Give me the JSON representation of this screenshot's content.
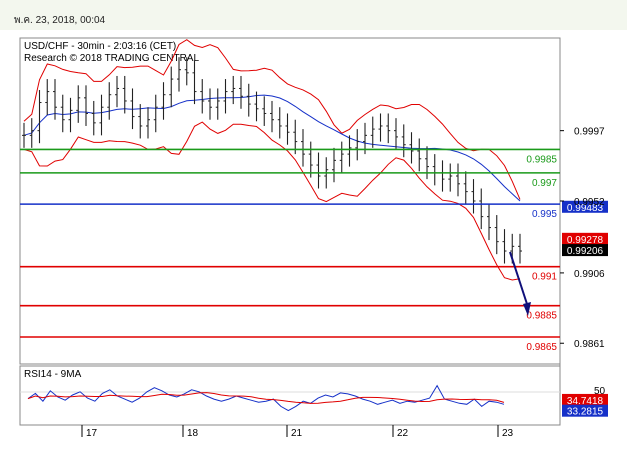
{
  "header": {
    "date_text": "พ.ค. 23, 2018, 00:04"
  },
  "chart_data": {
    "type": "line",
    "title": "USD/CHF - 30min - 2:03:16 (CET)",
    "subtitle": "Research © 2018 TRADING CENTRAL",
    "price_axis": {
      "ticks": [
        0.9997,
        0.9952,
        0.9906,
        0.9861
      ],
      "ylim": [
        0.9849,
        1.0055
      ]
    },
    "x_ticks": [
      "17",
      "18",
      "21",
      "22",
      "23"
    ],
    "levels": [
      {
        "value": 0.9985,
        "label": "0.9985",
        "color": "#1a9a1a"
      },
      {
        "value": 0.997,
        "label": "0.997",
        "color": "#1a9a1a"
      },
      {
        "value": 0.995,
        "label": "0.995",
        "color": "#1530c8"
      },
      {
        "value": 0.991,
        "label": "0.991",
        "color": "#e00000"
      },
      {
        "value": 0.9885,
        "label": "0.9885",
        "color": "#e00000"
      },
      {
        "value": 0.9865,
        "label": "0.9865",
        "color": "#e00000"
      }
    ],
    "price_tags": [
      {
        "label": "0.99483",
        "value": 0.99483,
        "color": "#1530c8"
      },
      {
        "label": "0.99278",
        "value": 0.99278,
        "color": "#e00000"
      },
      {
        "label": "0.99206",
        "value": 0.99206,
        "color": "#000000"
      }
    ],
    "close_series": [
      0.9994,
      0.9997,
      1.0015,
      1.0022,
      1.0012,
      1.0004,
      1.001,
      1.0018,
      1.0008,
      1.0002,
      1.0012,
      1.002,
      1.0024,
      1.0016,
      1.0006,
      1.0,
      1.0004,
      1.0012,
      1.002,
      1.003,
      1.0036,
      1.0034,
      1.0022,
      1.0016,
      1.0012,
      1.0016,
      1.0022,
      1.0024,
      1.0019,
      1.0014,
      1.0011,
      1.0008,
      1.0004,
      1.0,
      0.9996,
      0.999,
      0.9982,
      0.9975,
      0.9968,
      0.9972,
      0.9978,
      0.9982,
      0.9986,
      0.999,
      0.9994,
      0.9998,
      1.0,
      0.9997,
      0.9993,
      0.9988,
      0.9984,
      0.9979,
      0.9974,
      0.997,
      0.9966,
      0.9968,
      0.9963,
      0.9958,
      0.9952,
      0.9942,
      0.9935,
      0.9926,
      0.992,
      0.9923,
      0.992
    ],
    "rsi": {
      "label": "RSI14 - 9MA",
      "level_label": "50",
      "ylim": [
        0,
        100
      ],
      "tags": [
        {
          "label": "34.7418",
          "value": 34.7418,
          "color": "#e00000"
        },
        {
          "label": "33.2815",
          "value": 33.2815,
          "color": "#1530c8"
        }
      ],
      "values": [
        45,
        55,
        40,
        60,
        48,
        42,
        52,
        58,
        46,
        40,
        55,
        62,
        50,
        44,
        38,
        46,
        58,
        66,
        60,
        52,
        48,
        54,
        62,
        58,
        50,
        44,
        40,
        44,
        50,
        46,
        42,
        38,
        40,
        44,
        30,
        22,
        30,
        40,
        36,
        46,
        52,
        48,
        56,
        54,
        50,
        44,
        40,
        34,
        38,
        42,
        36,
        40,
        38,
        42,
        46,
        70,
        44,
        40,
        36,
        34,
        44,
        30,
        40,
        38,
        34
      ]
    }
  }
}
